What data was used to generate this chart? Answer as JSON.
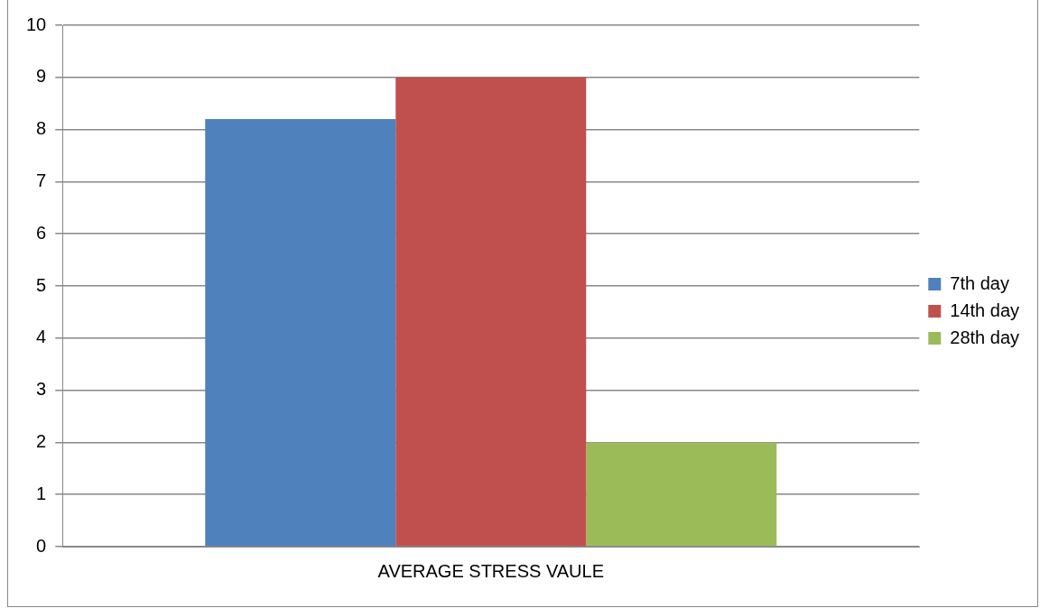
{
  "chart_data": {
    "type": "bar",
    "categories": [
      "AVERAGE STRESS VAULE"
    ],
    "series": [
      {
        "name": "7th day",
        "color": "#4f81bd",
        "values": [
          8.2
        ]
      },
      {
        "name": "14th day",
        "color": "#c0504d",
        "values": [
          9.0
        ]
      },
      {
        "name": "28th day",
        "color": "#9bbb59",
        "values": [
          2.0
        ]
      }
    ],
    "ylim": [
      0,
      10
    ],
    "yticks": [
      0,
      1,
      2,
      3,
      4,
      5,
      6,
      7,
      8,
      9,
      10
    ],
    "grid": "y",
    "legend": "right"
  }
}
